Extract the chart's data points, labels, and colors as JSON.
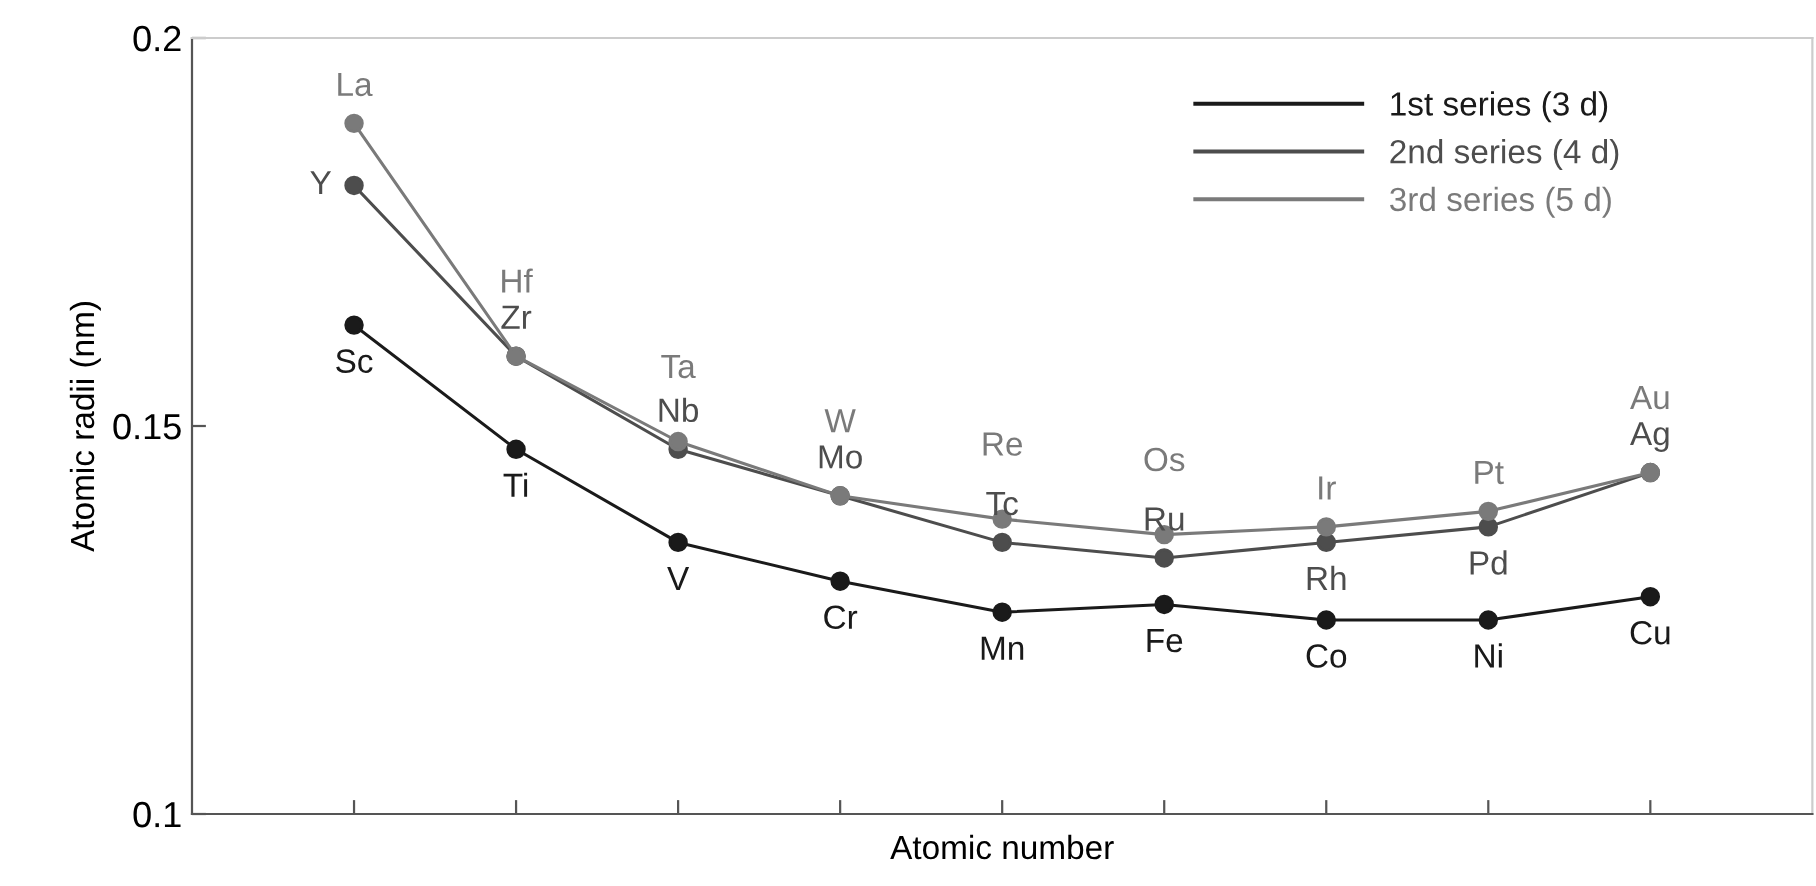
{
  "chart_data": {
    "type": "line",
    "xlabel": "Atomic number",
    "ylabel": "Atomic radii (nm)",
    "categories": [
      null,
      null,
      null,
      null,
      null,
      null,
      null,
      null,
      null
    ],
    "ylim": [
      0.1,
      0.2
    ],
    "yticks": [
      0.1,
      0.15,
      0.2
    ],
    "grid": false,
    "legend": "top right",
    "marker": "circle",
    "line_style": "solid",
    "series": [
      {
        "name": "1st series (3 d)",
        "color": "#1a1a1a",
        "values": [
          0.163,
          0.147,
          0.135,
          0.13,
          0.126,
          0.127,
          0.125,
          0.125,
          0.128
        ],
        "value_labels": [
          "Sc",
          "Ti",
          "V",
          "Cr",
          "Mn",
          "Fe",
          "Co",
          "Ni",
          "Cu"
        ]
      },
      {
        "name": "2nd series (4 d)",
        "color": "#4d4d4d",
        "values": [
          0.181,
          0.159,
          0.147,
          0.141,
          0.135,
          0.133,
          0.135,
          0.137,
          0.144
        ],
        "value_labels": [
          "Y",
          "Zr",
          "Nb",
          "Mo",
          "Tc",
          "Ru",
          "Rh",
          "Pd",
          "Ag"
        ]
      },
      {
        "name": "3rd series (5 d)",
        "color": "#7a7a7a",
        "values": [
          0.189,
          0.159,
          0.148,
          0.141,
          0.138,
          0.136,
          0.137,
          0.139,
          0.144
        ],
        "value_labels": [
          "La",
          "Hf",
          "Ta",
          "W",
          "Re",
          "Os",
          "Ir",
          "Pt",
          "Au"
        ]
      }
    ]
  }
}
